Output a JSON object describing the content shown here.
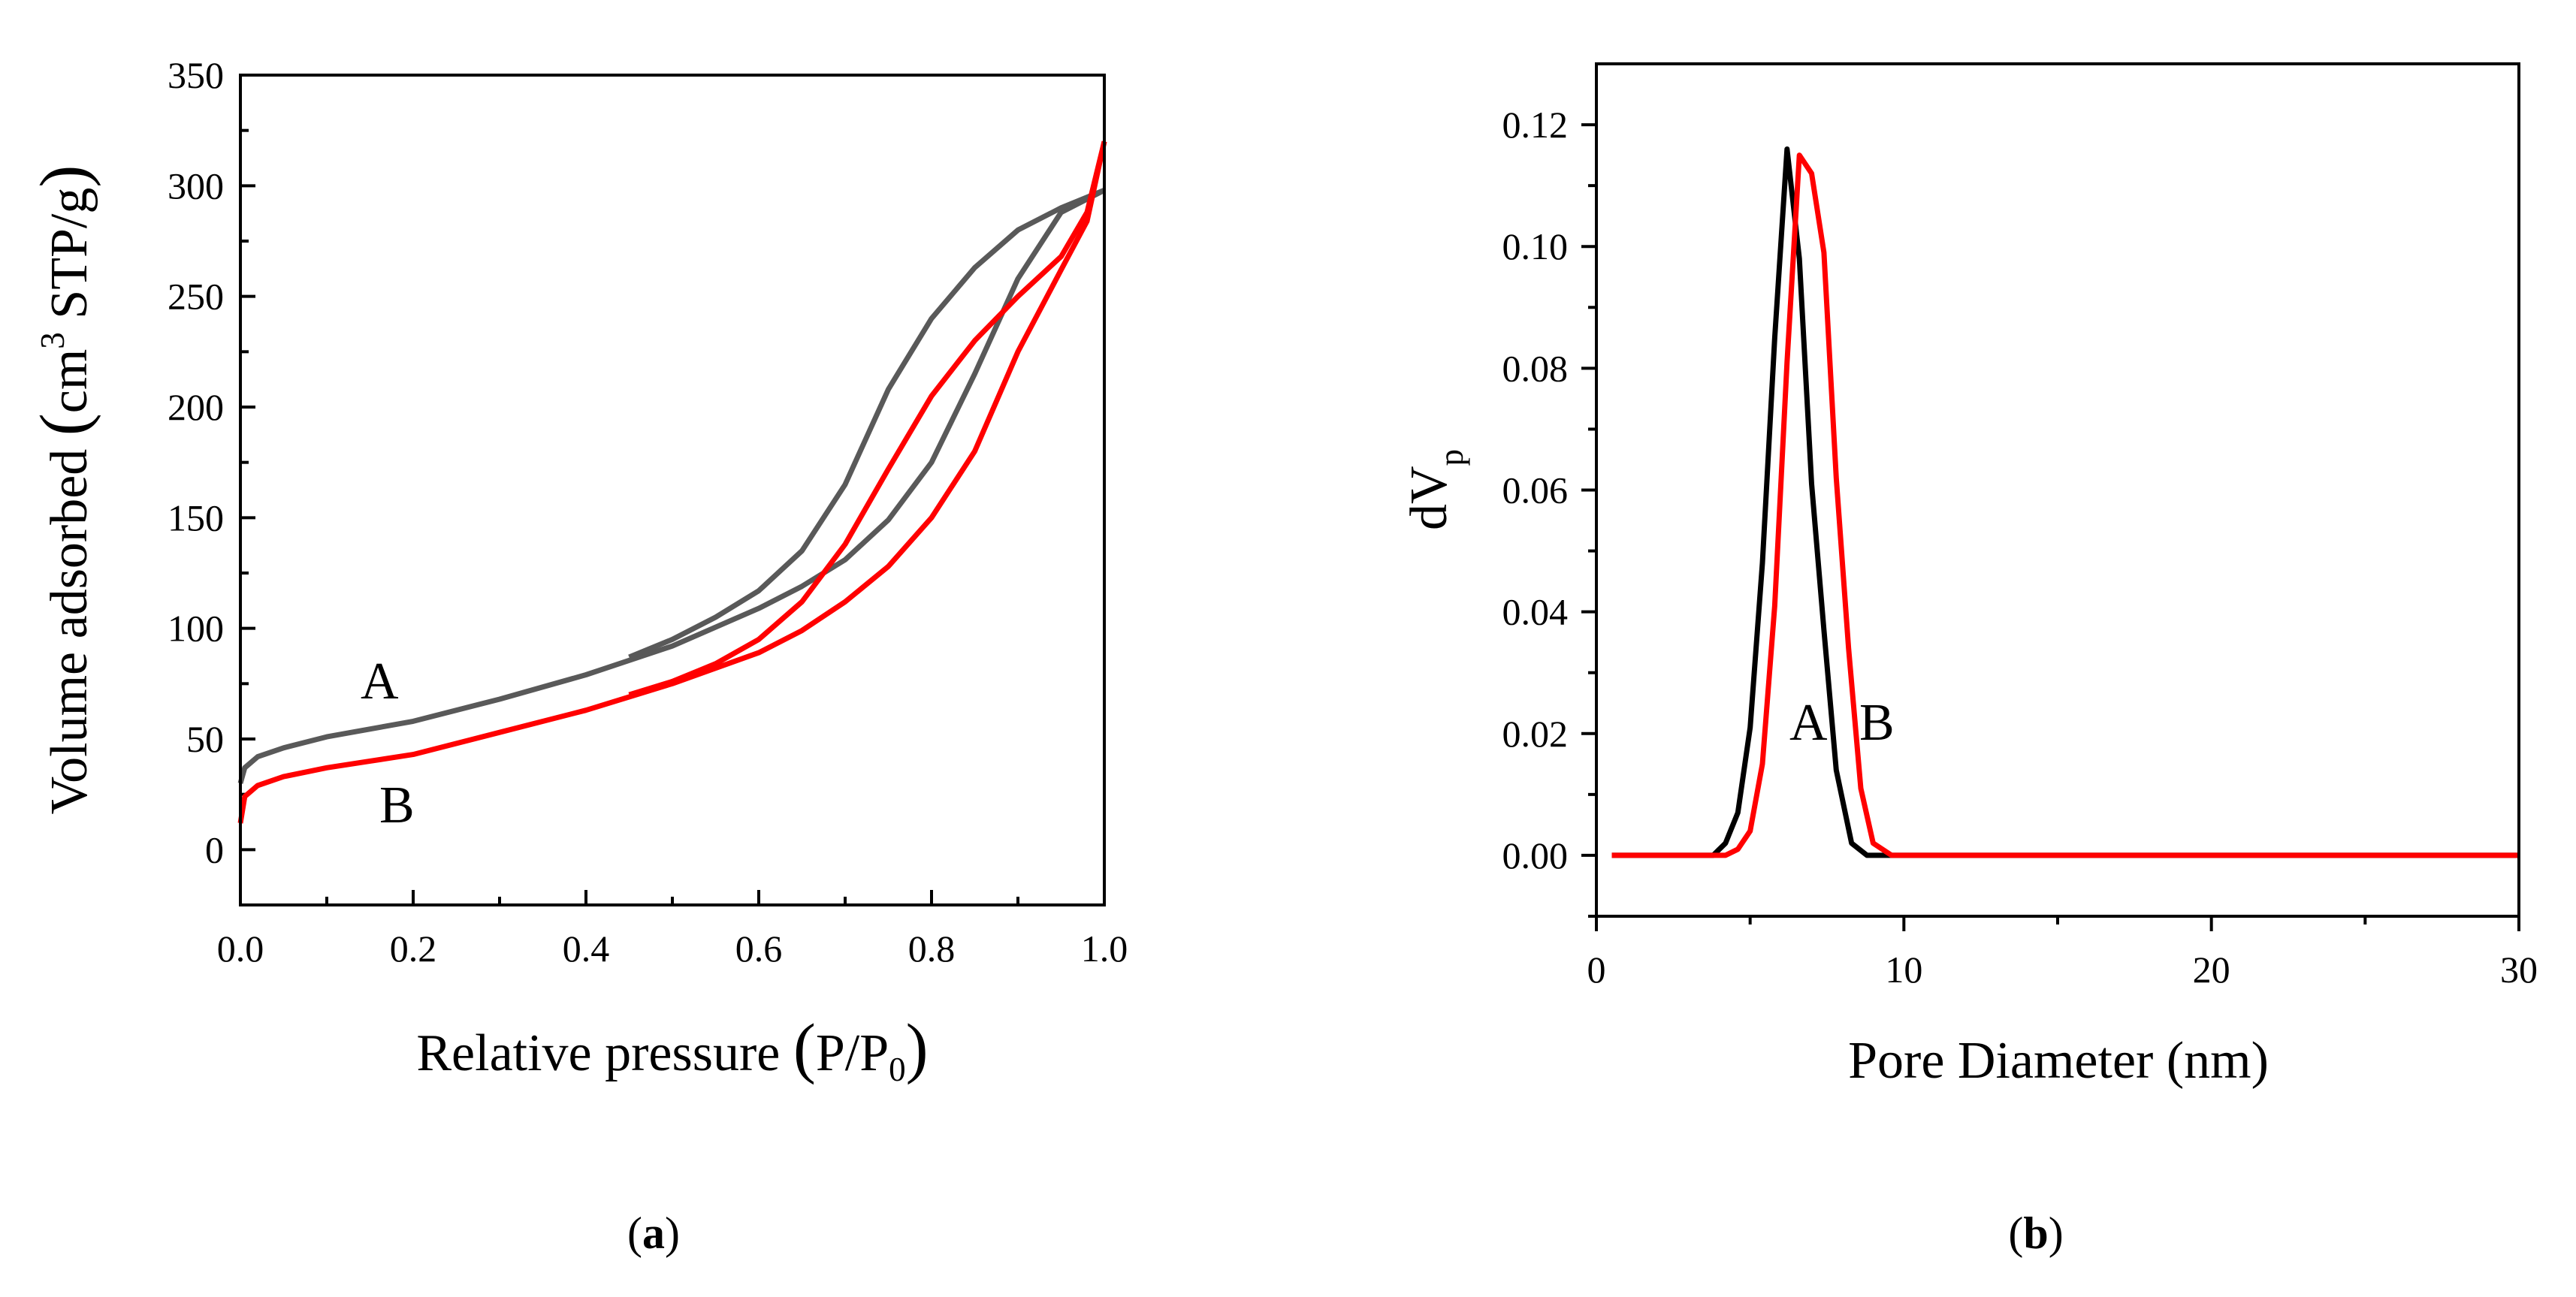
{
  "figure": {
    "panel_a_caption": {
      "open": "(",
      "bold": "a",
      "close": ")"
    },
    "panel_b_caption": {
      "open": "(",
      "bold": "b",
      "close": ")"
    }
  },
  "colors": {
    "A": "#595959",
    "B": "#ff0000",
    "A_psd": "#000000",
    "axis": "#000000"
  },
  "chart_data": [
    {
      "type": "line",
      "panel": "a",
      "xlabel": {
        "main": "Relative pressure",
        "open": "(",
        "var": "P/P",
        "sub": "0",
        "close": ")"
      },
      "ylabel": {
        "main": "Volume adsorbed",
        "open": "(",
        "unit1": "cm",
        "sup": "3",
        "unit2": " STP/g",
        "close": ")"
      },
      "xlim": [
        0.0,
        1.0
      ],
      "ylim": [
        -25,
        350
      ],
      "x_ticks": [
        "0.0",
        "0.2",
        "0.4",
        "0.6",
        "0.8",
        "1.0"
      ],
      "y_ticks": [
        "0",
        "50",
        "100",
        "150",
        "200",
        "250",
        "300",
        "350"
      ],
      "annotations": [
        "A",
        "B"
      ],
      "series": [
        {
          "key": "A",
          "color": "#595959",
          "adsorption": [
            [
              0.0,
              30
            ],
            [
              0.005,
              37
            ],
            [
              0.02,
              42
            ],
            [
              0.05,
              46
            ],
            [
              0.1,
              51
            ],
            [
              0.2,
              58
            ],
            [
              0.3,
              68
            ],
            [
              0.4,
              79
            ],
            [
              0.5,
              92
            ],
            [
              0.6,
              109
            ],
            [
              0.65,
              119
            ],
            [
              0.7,
              131
            ],
            [
              0.75,
              149
            ],
            [
              0.8,
              175
            ],
            [
              0.85,
              215
            ],
            [
              0.9,
              258
            ],
            [
              0.95,
              288
            ],
            [
              1.0,
              298
            ]
          ],
          "desorption": [
            [
              1.0,
              298
            ],
            [
              0.95,
              290
            ],
            [
              0.9,
              280
            ],
            [
              0.85,
              263
            ],
            [
              0.8,
              240
            ],
            [
              0.75,
              208
            ],
            [
              0.7,
              165
            ],
            [
              0.65,
              135
            ],
            [
              0.6,
              117
            ],
            [
              0.55,
              105
            ],
            [
              0.5,
              95
            ],
            [
              0.45,
              87
            ]
          ]
        },
        {
          "key": "B",
          "color": "#ff0000",
          "adsorption": [
            [
              0.0,
              12
            ],
            [
              0.005,
              24
            ],
            [
              0.02,
              29
            ],
            [
              0.05,
              33
            ],
            [
              0.1,
              37
            ],
            [
              0.2,
              43
            ],
            [
              0.3,
              53
            ],
            [
              0.4,
              63
            ],
            [
              0.5,
              75
            ],
            [
              0.6,
              89
            ],
            [
              0.65,
              99
            ],
            [
              0.7,
              112
            ],
            [
              0.75,
              128
            ],
            [
              0.8,
              150
            ],
            [
              0.85,
              180
            ],
            [
              0.9,
              225
            ],
            [
              0.95,
              262
            ],
            [
              0.98,
              284
            ],
            [
              1.0,
              320
            ]
          ],
          "desorption": [
            [
              1.0,
              320
            ],
            [
              0.98,
              288
            ],
            [
              0.95,
              268
            ],
            [
              0.9,
              250
            ],
            [
              0.85,
              230
            ],
            [
              0.8,
              205
            ],
            [
              0.75,
              172
            ],
            [
              0.7,
              138
            ],
            [
              0.65,
              112
            ],
            [
              0.6,
              95
            ],
            [
              0.55,
              84
            ],
            [
              0.5,
              76
            ],
            [
              0.45,
              70
            ]
          ]
        }
      ]
    },
    {
      "type": "line",
      "panel": "b",
      "xlabel": "Pore Diameter (nm)",
      "ylabel": {
        "main": "dV",
        "sub": "p"
      },
      "xlim": [
        0,
        30
      ],
      "ylim": [
        -0.01,
        0.13
      ],
      "x_ticks": [
        "0",
        "10",
        "20",
        "30"
      ],
      "y_ticks": [
        "0.00",
        "0.02",
        "0.04",
        "0.06",
        "0.08",
        "0.10",
        "0.12"
      ],
      "annotations": [
        "A",
        "B"
      ],
      "series": [
        {
          "key": "A",
          "color": "#000000",
          "points": [
            [
              0.5,
              0
            ],
            [
              3.8,
              0
            ],
            [
              4.2,
              0.002
            ],
            [
              4.6,
              0.007
            ],
            [
              5.0,
              0.021
            ],
            [
              5.4,
              0.048
            ],
            [
              5.8,
              0.085
            ],
            [
              6.2,
              0.116
            ],
            [
              6.6,
              0.098
            ],
            [
              7.0,
              0.061
            ],
            [
              7.4,
              0.037
            ],
            [
              7.8,
              0.014
            ],
            [
              8.3,
              0.002
            ],
            [
              8.8,
              0
            ],
            [
              9.5,
              0
            ],
            [
              30,
              0
            ]
          ]
        },
        {
          "key": "B",
          "color": "#ff0000",
          "points": [
            [
              0.5,
              0
            ],
            [
              4.2,
              0
            ],
            [
              4.6,
              0.001
            ],
            [
              5.0,
              0.004
            ],
            [
              5.4,
              0.015
            ],
            [
              5.8,
              0.041
            ],
            [
              6.2,
              0.081
            ],
            [
              6.6,
              0.115
            ],
            [
              7.0,
              0.112
            ],
            [
              7.4,
              0.099
            ],
            [
              7.8,
              0.062
            ],
            [
              8.2,
              0.034
            ],
            [
              8.6,
              0.011
            ],
            [
              9.0,
              0.002
            ],
            [
              9.6,
              0
            ],
            [
              30,
              0
            ]
          ]
        }
      ]
    }
  ]
}
